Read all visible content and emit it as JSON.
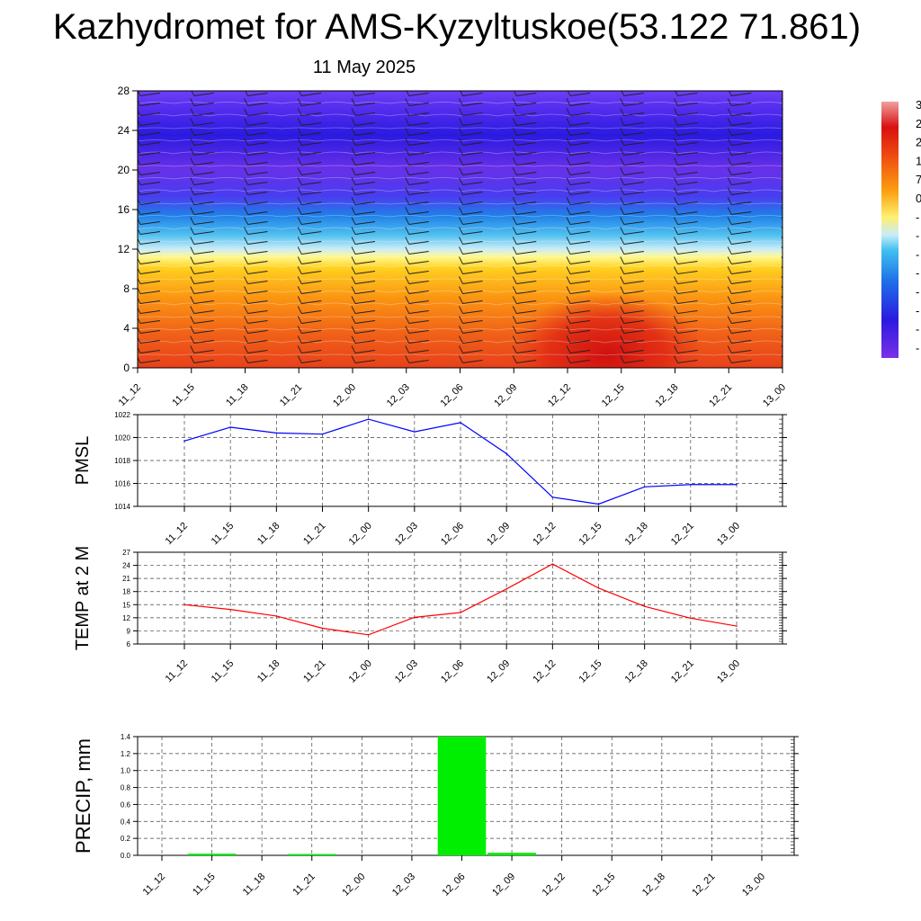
{
  "title": "Kazhydromet for AMS-Kyzyltuskoe(53.122 71.861)",
  "date_label": "11 May 2025",
  "colorbar_labels": [
    "3",
    "2",
    "2",
    "1",
    "7",
    "0",
    "-",
    "-",
    "-",
    "-",
    "-",
    "-",
    "-",
    "-"
  ],
  "chart_data": [
    {
      "type": "heatmap",
      "panel": "cross-section",
      "x_ticks": [
        "11_12",
        "11_15",
        "11_18",
        "11_21",
        "12_00",
        "12_03",
        "12_06",
        "12_09",
        "12_12",
        "12_15",
        "12_18",
        "12_21",
        "13_00"
      ],
      "y_ticks": [
        "0",
        "4",
        "8",
        "12",
        "16",
        "20",
        "24",
        "28"
      ],
      "ylim": [
        0,
        28
      ],
      "note_levels": "filled contours with wind barbs"
    },
    {
      "type": "line",
      "ylabel": "PMSL",
      "x": [
        "11_12",
        "11_15",
        "11_18",
        "11_21",
        "12_00",
        "12_03",
        "12_06",
        "12_09",
        "12_12",
        "12_15",
        "12_18",
        "12_21",
        "13_00"
      ],
      "values": [
        1019.7,
        1020.9,
        1020.4,
        1020.3,
        1021.6,
        1020.5,
        1021.3,
        1018.6,
        1014.8,
        1014.2,
        1015.7,
        1015.9,
        1015.9
      ],
      "y_ticks": [
        "1014",
        "1016",
        "1018",
        "1020",
        "1022"
      ],
      "ylim": [
        1014,
        1022
      ],
      "color": "#0000ff"
    },
    {
      "type": "line",
      "ylabel": "TEMP at 2 M",
      "x": [
        "11_12",
        "11_15",
        "11_18",
        "11_21",
        "12_00",
        "12_03",
        "12_06",
        "12_09",
        "12_12",
        "12_15",
        "12_18",
        "12_21",
        "13_00"
      ],
      "values": [
        15.0,
        13.9,
        12.4,
        9.6,
        8.1,
        12.1,
        13.2,
        18.6,
        24.3,
        18.8,
        14.6,
        11.9,
        10.1
      ],
      "y_ticks": [
        "6",
        "9",
        "12",
        "15",
        "18",
        "21",
        "24",
        "27"
      ],
      "ylim": [
        6,
        27
      ],
      "color": "#ff0000"
    },
    {
      "type": "bar",
      "ylabel": "PRECIP, mm",
      "categories": [
        "11_12",
        "11_15",
        "11_18",
        "11_21",
        "12_00",
        "12_03",
        "12_06",
        "12_09",
        "12_12",
        "12_15",
        "12_18",
        "12_21",
        "13_00"
      ],
      "values": [
        0,
        0.02,
        0,
        0.01,
        0,
        0,
        1.4,
        0.03,
        0,
        0,
        0,
        0,
        0
      ],
      "y_ticks": [
        "0.0",
        "0.2",
        "0.4",
        "0.6",
        "0.8",
        "1.0",
        "1.2",
        "1.4"
      ],
      "ylim": [
        0,
        1.4
      ],
      "color": "#00ee00"
    }
  ]
}
